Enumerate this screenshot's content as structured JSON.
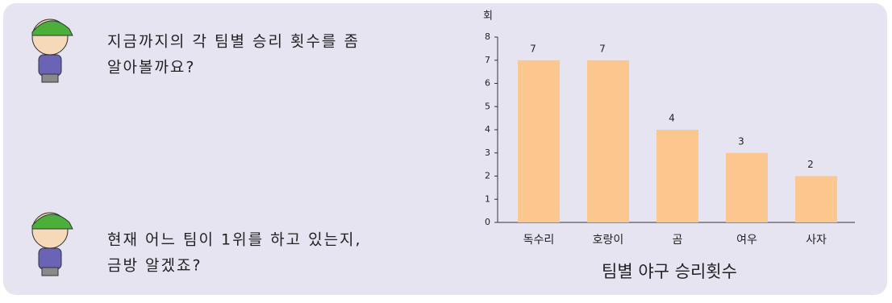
{
  "messages": [
    [
      "지금까지의 각 팀별 승리 횟수를 좀",
      "알아볼까요?"
    ],
    [
      "현재 어느 팀이 1위를 하고 있는지,",
      "금방 알겠죠?"
    ]
  ],
  "chart_data": {
    "type": "bar",
    "title": "팀별 야구 승리횟수",
    "y_label": "회",
    "categories": [
      "독수리",
      "호랑이",
      "곰",
      "여우",
      "사자"
    ],
    "values": [
      7,
      7,
      4,
      3,
      2
    ],
    "color": "#fbc78f",
    "ylim": [
      0,
      8
    ],
    "yticks": [
      0,
      1,
      2,
      3,
      4,
      5,
      6,
      7,
      8
    ]
  }
}
